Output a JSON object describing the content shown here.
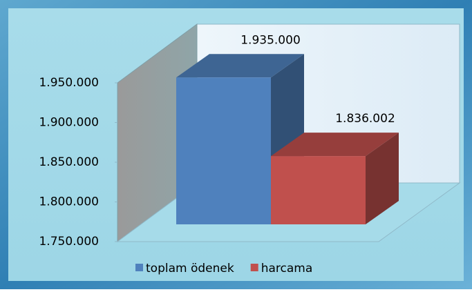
{
  "chart_data": {
    "type": "bar3d",
    "series": [
      {
        "name": "toplam ödenek",
        "color": "#4f81bd",
        "values": [
          1935000
        ],
        "value_labels": [
          "1.935.000"
        ]
      },
      {
        "name": "harcama",
        "color": "#c0504d",
        "values": [
          1836002
        ],
        "value_labels": [
          "1.836.002"
        ]
      }
    ],
    "ylim": [
      1750000,
      1950000
    ],
    "yticks": [
      {
        "value": 1750000,
        "label": "1.750.000"
      },
      {
        "value": 1800000,
        "label": "1.800.000"
      },
      {
        "value": 1850000,
        "label": "1.850.000"
      },
      {
        "value": 1900000,
        "label": "1.900.000"
      },
      {
        "value": 1950000,
        "label": "1.950.000"
      }
    ],
    "legend": "bottom"
  }
}
